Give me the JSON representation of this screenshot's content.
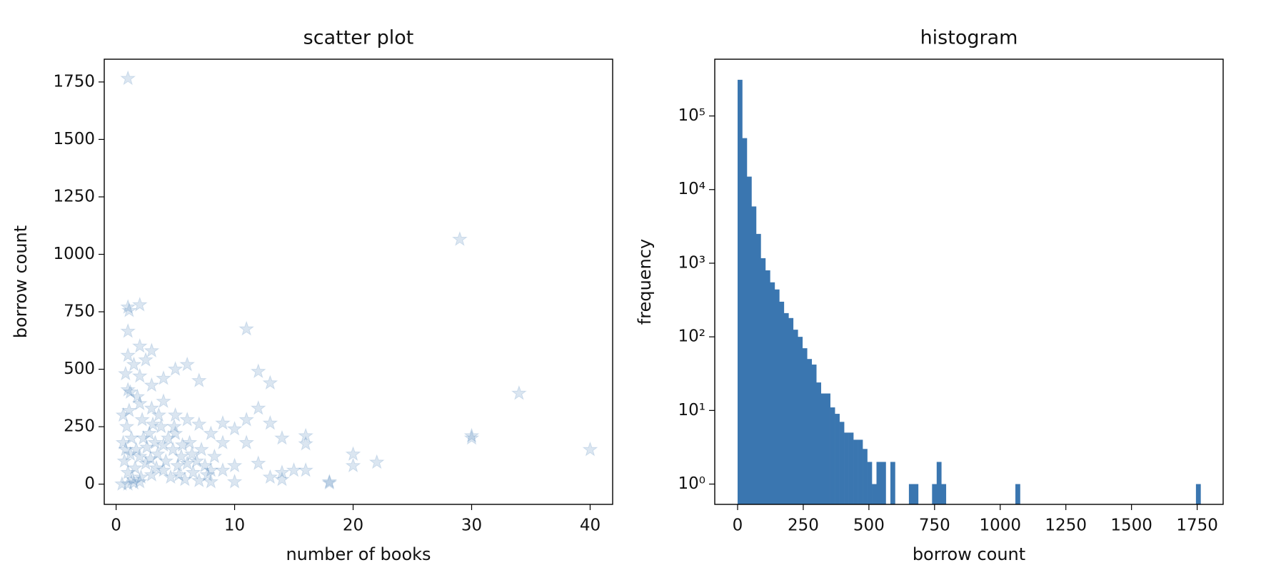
{
  "chart_data": [
    {
      "type": "scatter",
      "title": "scatter plot",
      "x_label": "number of books",
      "y_label": "borrow count",
      "color": "#3a76b0",
      "alpha": 0.18,
      "marker": "star",
      "x": [
        1,
        29,
        34,
        40,
        30,
        30,
        20,
        20,
        22,
        18,
        18,
        11,
        12,
        13,
        1,
        1.1,
        2,
        1,
        16,
        16,
        14,
        12,
        13,
        11,
        15,
        14,
        10,
        10,
        10,
        9,
        12,
        11,
        16,
        14,
        13,
        1,
        2,
        3,
        1.5,
        2.5,
        6,
        5,
        4,
        7,
        2,
        3,
        0.8,
        1.2,
        1,
        2,
        3,
        4,
        5,
        6,
        7,
        8,
        0.6,
        0.9,
        1.3,
        1.7,
        2.2,
        2.8,
        3.3,
        3.8,
        4.4,
        4.8,
        5.5,
        6.2,
        6.8,
        7.5,
        8,
        0.7,
        1,
        1.4,
        2,
        2.5,
        3,
        3.5,
        4,
        4.6,
        5.2,
        5.8,
        6.5,
        7,
        8,
        0.5,
        1,
        1.5,
        2,
        2.6,
        3.1,
        3.6,
        4.2,
        5,
        5.6,
        6,
        7.2,
        8.3,
        9,
        9,
        0.8,
        1.1,
        1.8,
        2.3,
        2.9,
        3.4,
        4,
        4.9,
        5.3,
        6.4,
        7.7,
        1.6,
        2.1,
        0.6,
        1.2
      ],
      "values": [
        1765,
        1065,
        395,
        150,
        200,
        210,
        130,
        80,
        95,
        10,
        5,
        675,
        490,
        440,
        770,
        755,
        780,
        665,
        210,
        175,
        200,
        330,
        265,
        280,
        60,
        50,
        240,
        80,
        10,
        265,
        90,
        180,
        60,
        20,
        30,
        560,
        600,
        580,
        520,
        540,
        520,
        500,
        460,
        450,
        470,
        430,
        480,
        400,
        410,
        350,
        330,
        360,
        300,
        280,
        260,
        220,
        300,
        250,
        200,
        150,
        280,
        220,
        180,
        250,
        200,
        150,
        120,
        180,
        100,
        80,
        60,
        100,
        50,
        20,
        10,
        90,
        40,
        130,
        60,
        30,
        80,
        20,
        50,
        15,
        10,
        0,
        0,
        5,
        120,
        160,
        260,
        300,
        100,
        220,
        170,
        90,
        150,
        120,
        60,
        180,
        150,
        320,
        380,
        200,
        110,
        70,
        170,
        250,
        40,
        130,
        40,
        70,
        30,
        180,
        130
      ],
      "xlim": [
        -1.0,
        41.9
      ],
      "xticks": [
        0,
        10,
        20,
        30,
        40
      ],
      "ylim": [
        -88,
        1849
      ],
      "yticks": [
        0,
        250,
        500,
        750,
        1000,
        1250,
        1500,
        1750
      ]
    },
    {
      "type": "histogram",
      "title": "histogram",
      "x_label": "borrow count",
      "y_label": "frequency",
      "color": "#3a76b0",
      "log_y": true,
      "bins": [
        0,
        17.63,
        35.26,
        52.89,
        70.52,
        88.15,
        105.78,
        123.41,
        141.04,
        158.67,
        176.3,
        193.93,
        211.56,
        229.19,
        246.82,
        264.45,
        282.08,
        299.71,
        317.34,
        334.97,
        352.6,
        370.23,
        387.86,
        405.49,
        423.12,
        440.75,
        458.38,
        476.01,
        493.64,
        511.27,
        528.9,
        546.53,
        564.16,
        581.79,
        599.42,
        617.05,
        634.68,
        652.31,
        669.94,
        687.57,
        705.2,
        722.83,
        740.46,
        758.09,
        775.72,
        793.35,
        810.98,
        828.61,
        846.24,
        863.87,
        881.5,
        899.13,
        916.76,
        934.39,
        952.02,
        969.65,
        987.28,
        1004.91,
        1022.54,
        1040.17,
        1057.8,
        1075.43,
        1093.06,
        1110.69,
        1128.32,
        1145.95,
        1163.58,
        1181.21,
        1198.84,
        1216.47,
        1234.1,
        1251.73,
        1269.36,
        1286.99,
        1304.62,
        1322.25,
        1339.88,
        1357.51,
        1375.14,
        1392.77,
        1410.4,
        1428.03,
        1445.66,
        1463.29,
        1480.92,
        1498.55,
        1516.18,
        1533.81,
        1551.44,
        1569.07,
        1586.7,
        1604.33,
        1621.96,
        1639.59,
        1657.22,
        1674.85,
        1692.48,
        1710.11,
        1727.74,
        1745.37,
        1763
      ],
      "values": [
        310000,
        50000,
        15000,
        5900,
        2500,
        1170,
        800,
        550,
        440,
        300,
        210,
        180,
        125,
        100,
        70,
        50,
        42,
        24,
        17,
        17,
        11,
        9,
        7,
        5,
        5,
        4,
        4,
        3,
        2,
        1,
        2,
        2,
        0,
        2,
        0,
        0,
        0,
        1,
        1,
        0,
        0,
        0,
        1,
        2,
        1,
        0,
        0,
        0,
        0,
        0,
        0,
        0,
        0,
        0,
        0,
        0,
        0,
        0,
        0,
        0,
        1,
        0,
        0,
        0,
        0,
        0,
        0,
        0,
        0,
        0,
        0,
        0,
        0,
        0,
        0,
        0,
        0,
        0,
        0,
        0,
        0,
        0,
        0,
        0,
        0,
        0,
        0,
        0,
        0,
        0,
        0,
        0,
        0,
        0,
        0,
        0,
        0,
        0,
        0,
        1
      ],
      "xlim": [
        -87,
        1849
      ],
      "xticks": [
        0,
        250,
        500,
        750,
        1000,
        1250,
        1500,
        1750
      ],
      "ylim": [
        0.53,
        590000
      ],
      "yticks": [
        {
          "value": 1,
          "label": "10⁰"
        },
        {
          "value": 10,
          "label": "10¹"
        },
        {
          "value": 100,
          "label": "10²"
        },
        {
          "value": 1000,
          "label": "10³"
        },
        {
          "value": 10000,
          "label": "10⁴"
        },
        {
          "value": 100000,
          "label": "10⁵"
        }
      ]
    }
  ]
}
